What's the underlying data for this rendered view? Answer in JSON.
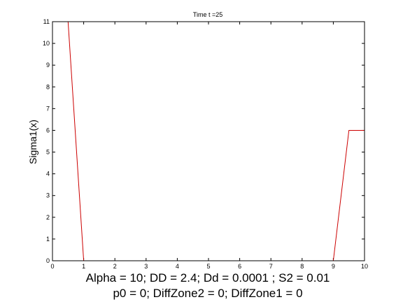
{
  "chart_data": {
    "type": "line",
    "title": "Time t =25",
    "ylabel": "Sigma1(x)",
    "xlabel_lines": [
      "Alpha = 10;  DD =  2.4; Dd = 0.0001 ; S2 = 0.01",
      "p0 = 0; DiffZone2 = 0; DiffZone1 = 0"
    ],
    "xlim": [
      0,
      10
    ],
    "ylim": [
      0,
      11
    ],
    "xticks": [
      "0",
      "1",
      "2",
      "3",
      "4",
      "5",
      "6",
      "7",
      "8",
      "9",
      "10"
    ],
    "yticks": [
      "0",
      "1",
      "2",
      "3",
      "4",
      "5",
      "6",
      "7",
      "8",
      "9",
      "10",
      "11"
    ],
    "grid": false,
    "series": [
      {
        "color": "#cc0000",
        "x": [
          0,
          0.5,
          1.0,
          9.0,
          9.5,
          10.0
        ],
        "y": [
          11,
          11,
          0,
          0,
          6,
          6
        ]
      }
    ]
  }
}
